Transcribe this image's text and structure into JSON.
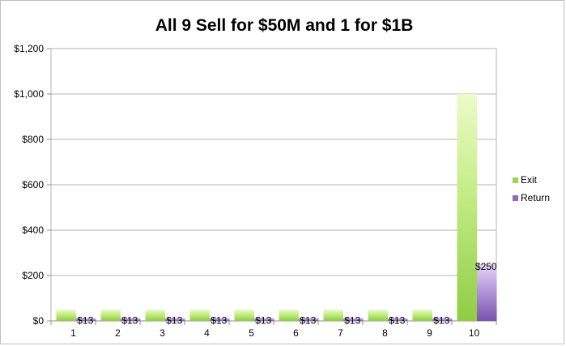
{
  "chart_data": {
    "type": "bar",
    "title": "All 9 Sell for $50M and 1 for $1B",
    "xlabel": "",
    "ylabel": "",
    "categories": [
      "1",
      "2",
      "3",
      "4",
      "5",
      "6",
      "7",
      "8",
      "9",
      "10"
    ],
    "ylim": [
      0,
      1200
    ],
    "yticks": [
      0,
      200,
      400,
      600,
      800,
      1000,
      1200
    ],
    "ytick_labels": [
      "$0",
      "$200",
      "$400",
      "$600",
      "$800",
      "$1,000",
      "$1,200"
    ],
    "grid": "horizontal",
    "legend_position": "right",
    "series": [
      {
        "name": "Exit",
        "color": "#9ed453",
        "values": [
          50,
          50,
          50,
          50,
          50,
          50,
          50,
          50,
          50,
          1000
        ],
        "data_labels": []
      },
      {
        "name": "Return",
        "color": "#8e6bb8",
        "values": [
          12.5,
          12.5,
          12.5,
          12.5,
          12.5,
          12.5,
          12.5,
          12.5,
          12.5,
          250
        ],
        "data_labels": [
          "$13",
          "$13",
          "$13",
          "$13",
          "$13",
          "$13",
          "$13",
          "$13",
          "$13",
          "$250"
        ]
      }
    ]
  }
}
